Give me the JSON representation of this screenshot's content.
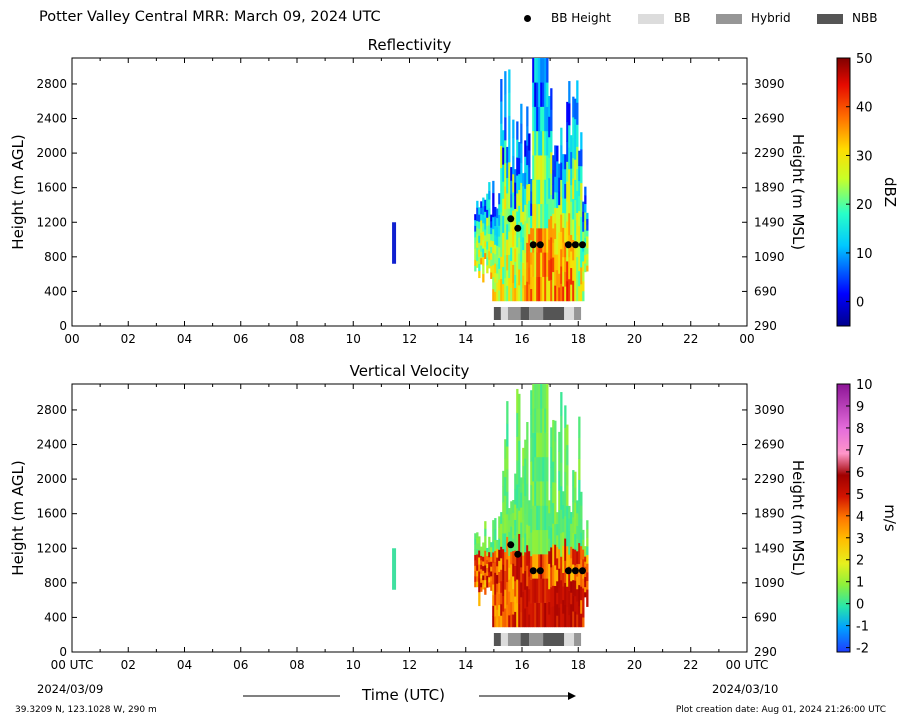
{
  "title": "Potter Valley Central MRR:  March 09, 2024 UTC",
  "legend": {
    "bb_height": "BB Height",
    "bb": "BB",
    "hybrid": "Hybrid",
    "nbb": "NBB",
    "colors": {
      "bb": "#dcdcdc",
      "hybrid": "#969696",
      "nbb": "#555555"
    }
  },
  "x_axis": {
    "title": "Time (UTC)",
    "tick_labels": [
      "00",
      "02",
      "04",
      "06",
      "08",
      "10",
      "12",
      "14",
      "16",
      "18",
      "20",
      "22",
      "00"
    ],
    "bottom_tick_labels": [
      "00 UTC",
      "02",
      "04",
      "06",
      "08",
      "10",
      "12",
      "14",
      "16",
      "18",
      "20",
      "22",
      "00 UTC"
    ],
    "date_start": "2024/03/09",
    "date_end": "2024/03/10"
  },
  "footer": {
    "location": "39.3209 N, 123.1028 W, 290 m",
    "creation": "Plot creation date: Aug 01, 2024 21:26:00 UTC"
  },
  "chart_data": [
    {
      "type": "heatmap",
      "title": "Reflectivity",
      "xlabel": "",
      "ylabel": "Height (m AGL)",
      "ylabel_right": "Height (m MSL)",
      "xlim": [
        0,
        24
      ],
      "ylim": [
        0,
        3100
      ],
      "y_ticks": [
        "0",
        "400",
        "800",
        "1200",
        "1600",
        "2000",
        "2400",
        "2800"
      ],
      "y_ticks_right": [
        "290",
        "690",
        "1090",
        "1490",
        "1890",
        "2290",
        "2690",
        "3090"
      ],
      "colorbar": {
        "label": "dBZ",
        "range": [
          -5,
          50
        ],
        "ticks": [
          "0",
          "10",
          "20",
          "30",
          "40",
          "50"
        ]
      },
      "bb_height_points": [
        [
          15.6,
          1240
        ],
        [
          15.85,
          1130
        ],
        [
          16.4,
          940
        ],
        [
          16.65,
          940
        ],
        [
          17.65,
          940
        ],
        [
          17.9,
          940
        ],
        [
          18.15,
          940
        ]
      ],
      "bb_type_strip": [
        {
          "start": 15.0,
          "end": 15.25,
          "type": "nbb"
        },
        {
          "start": 15.25,
          "end": 15.5,
          "type": "bb"
        },
        {
          "start": 15.5,
          "end": 15.95,
          "type": "hybrid"
        },
        {
          "start": 15.95,
          "end": 16.25,
          "type": "nbb"
        },
        {
          "start": 16.25,
          "end": 16.75,
          "type": "hybrid"
        },
        {
          "start": 16.75,
          "end": 17.5,
          "type": "nbb"
        },
        {
          "start": 17.5,
          "end": 17.85,
          "type": "bb"
        },
        {
          "start": 17.85,
          "end": 18.1,
          "type": "hybrid"
        }
      ]
    },
    {
      "type": "heatmap",
      "title": "Vertical Velocity",
      "xlabel": "Time (UTC)",
      "ylabel": "Height (m AGL)",
      "ylabel_right": "Height (m MSL)",
      "xlim": [
        0,
        24
      ],
      "ylim": [
        0,
        3100
      ],
      "y_ticks": [
        "0",
        "400",
        "800",
        "1200",
        "1600",
        "2000",
        "2400",
        "2800"
      ],
      "y_ticks_right": [
        "290",
        "690",
        "1090",
        "1490",
        "1890",
        "2290",
        "2690",
        "3090"
      ],
      "colorbar": {
        "label": "m/s",
        "range": [
          -2.2,
          10
        ],
        "ticks": [
          "-2",
          "-1",
          "0",
          "1",
          "2",
          "3",
          "4",
          "5",
          "6",
          "7",
          "8",
          "9",
          "10"
        ]
      },
      "bb_height_points": [
        [
          15.6,
          1240
        ],
        [
          15.85,
          1130
        ],
        [
          16.4,
          940
        ],
        [
          16.65,
          940
        ],
        [
          17.65,
          940
        ],
        [
          17.9,
          940
        ],
        [
          18.15,
          940
        ]
      ],
      "bb_type_strip": [
        {
          "start": 15.0,
          "end": 15.25,
          "type": "nbb"
        },
        {
          "start": 15.25,
          "end": 15.5,
          "type": "bb"
        },
        {
          "start": 15.5,
          "end": 15.95,
          "type": "hybrid"
        },
        {
          "start": 15.95,
          "end": 16.25,
          "type": "nbb"
        },
        {
          "start": 16.25,
          "end": 16.75,
          "type": "hybrid"
        },
        {
          "start": 16.75,
          "end": 17.5,
          "type": "nbb"
        },
        {
          "start": 17.5,
          "end": 17.85,
          "type": "bb"
        },
        {
          "start": 17.85,
          "end": 18.1,
          "type": "hybrid"
        }
      ]
    }
  ]
}
